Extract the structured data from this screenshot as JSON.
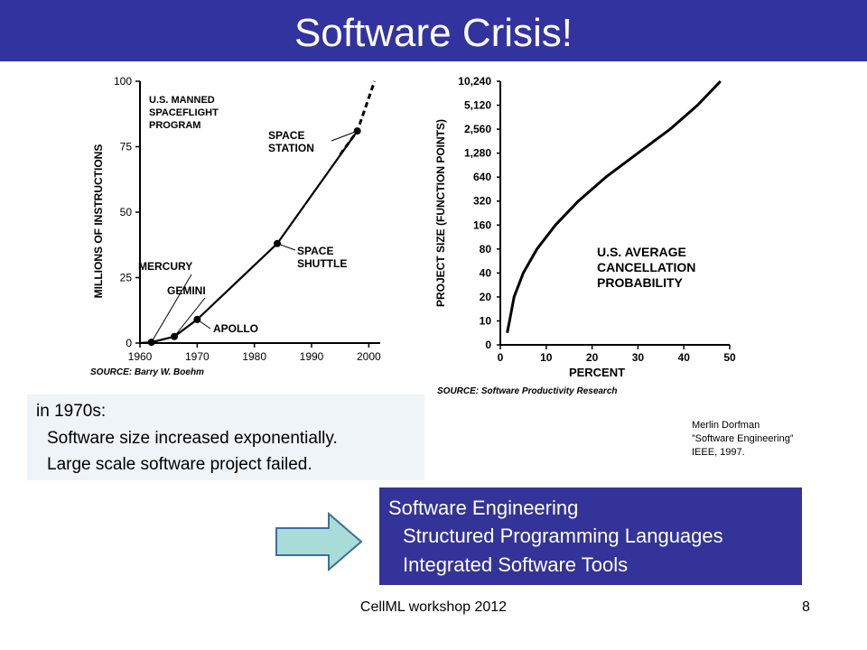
{
  "slide": {
    "title": "Software Crisis!",
    "title_bar_color": "#3333a0",
    "footer": "CellML workshop 2012",
    "page_number": "8"
  },
  "note": {
    "lines": [
      "in 1970s:",
      "Software size increased exponentially.",
      "Large scale software project failed."
    ]
  },
  "citation": {
    "lines": [
      "Merlin Dorfman",
      "”Software Engineering”",
      "IEEE, 1997."
    ]
  },
  "software_engineering": {
    "box_color": "#333399",
    "lines": [
      "Software Engineering",
      "Structured Programming Languages",
      "Integrated Software Tools"
    ]
  },
  "arrow_color": "#a8dcd8",
  "chart_data": [
    {
      "type": "line",
      "title": "U.S. MANNED SPACEFLIGHT PROGRAM",
      "ylabel": "MILLIONS OF INSTRUCTIONS",
      "xlabel": "",
      "source": "SOURCE: Barry W. Boehm",
      "x_ticks": [
        "1960",
        "1970",
        "1980",
        "1990",
        "2000"
      ],
      "y_ticks": [
        "0",
        "25",
        "50",
        "75",
        "100"
      ],
      "xlim": [
        1960,
        2002
      ],
      "ylim": [
        0,
        100
      ],
      "series": [
        {
          "values_x": [
            1960,
            1962,
            1966,
            1970,
            1984,
            1998
          ],
          "values_y": [
            0,
            0.3,
            2.5,
            9,
            38,
            81
          ]
        }
      ],
      "projection": {
        "x": [
          1995,
          1998,
          2001
        ],
        "y": [
          72,
          81,
          100
        ]
      },
      "points": [
        {
          "label": "MERCURY",
          "x": 1962,
          "y": 0.3
        },
        {
          "label": "GEMINI",
          "x": 1966,
          "y": 2.5
        },
        {
          "label": "APOLLO",
          "x": 1970,
          "y": 9
        },
        {
          "label": "SPACE SHUTTLE",
          "x": 1984,
          "y": 38
        },
        {
          "label": "SPACE STATION",
          "x": 1998,
          "y": 81
        }
      ]
    },
    {
      "type": "line",
      "title": "U.S. AVERAGE CANCELLATION PROBABILITY",
      "ylabel": "PROJECT SIZE (FUNCTION POINTS)",
      "xlabel": "PERCENT",
      "source": "SOURCE: Software Productivity Research",
      "x_ticks": [
        "0",
        "10",
        "20",
        "30",
        "40",
        "50"
      ],
      "y_ticks": [
        "0",
        "10",
        "20",
        "40",
        "80",
        "160",
        "320",
        "640",
        "1,280",
        "2,560",
        "5,120",
        "10,240"
      ],
      "xlim": [
        0,
        50
      ],
      "series": [
        {
          "values_x": [
            1.5,
            2,
            3,
            5,
            8,
            12,
            17,
            23,
            30,
            37,
            43,
            48
          ],
          "values_y": [
            5,
            10,
            20,
            40,
            80,
            160,
            320,
            640,
            1280,
            2560,
            5120,
            10240
          ]
        }
      ]
    }
  ]
}
